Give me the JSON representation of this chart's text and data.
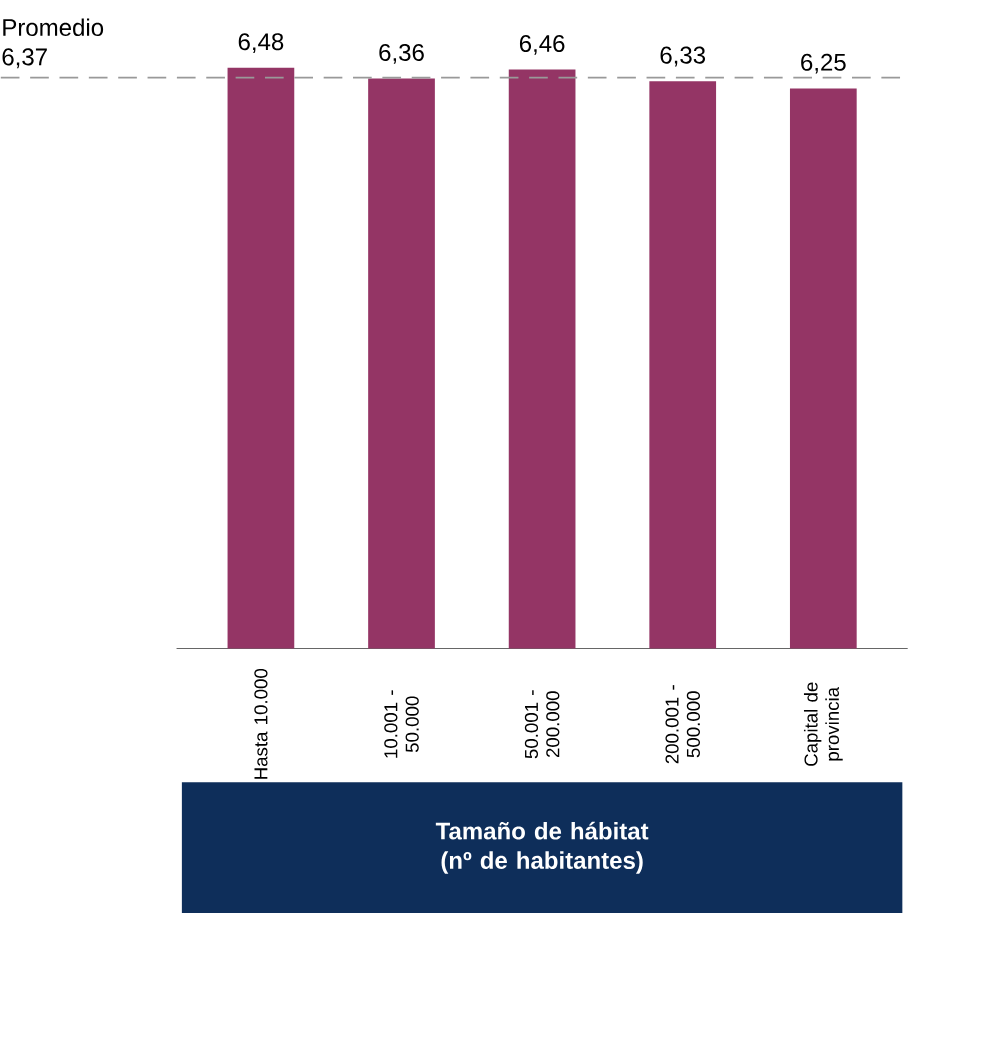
{
  "chart_data": {
    "type": "bar",
    "categories": [
      "Hasta 10.000",
      "10.001 - 50.000",
      "50.001 - 200.000",
      "200.001 - 500.000",
      "Capital de provincia"
    ],
    "values": [
      6.48,
      6.36,
      6.46,
      6.33,
      6.25
    ],
    "value_labels": [
      "6,48",
      "6,36",
      "6,46",
      "6,33",
      "6,25"
    ],
    "color": "#943565",
    "tick_labels": "x",
    "xlabel": "Tamaño de hábitat (nº de habitantes)",
    "ref_lines": [
      {
        "axis": "y",
        "value": 6.37,
        "label": "Promedio 6,37",
        "color": "#999999",
        "line_style": "dashed"
      }
    ]
  }
}
